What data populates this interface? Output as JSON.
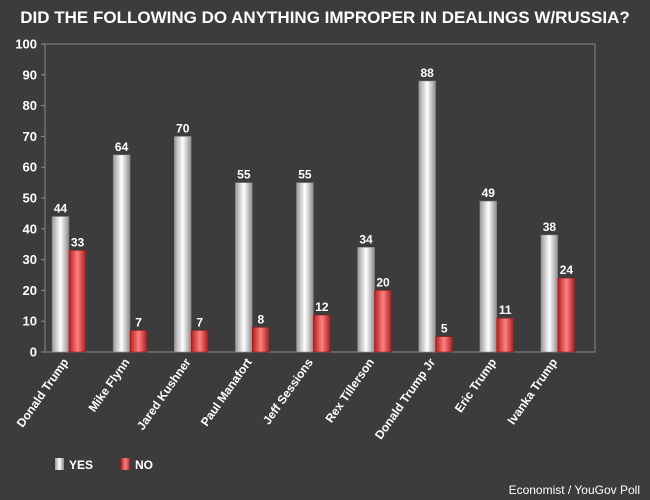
{
  "chart_data": {
    "type": "bar",
    "title": "DID THE FOLLOWING DO ANYTHING IMPROPER IN DEALINGS W/RUSSIA?",
    "categories": [
      "Donald Trump",
      "Mike Flynn",
      "Jared Kushner",
      "Paul Manafort",
      "Jeff Sessions",
      "Rex Tillerson",
      "Donald Trump Jr",
      "Eric Trump",
      "Ivanka Trump"
    ],
    "series": [
      {
        "name": "YES",
        "values": [
          44,
          64,
          70,
          55,
          55,
          34,
          88,
          49,
          38
        ]
      },
      {
        "name": "NO",
        "values": [
          33,
          7,
          7,
          8,
          12,
          20,
          5,
          11,
          24
        ]
      }
    ],
    "ylim": [
      0,
      100
    ],
    "yticks": [
      0,
      10,
      20,
      30,
      40,
      50,
      60,
      70,
      80,
      90,
      100
    ],
    "grid": false,
    "legend_position": "bottom-left",
    "colors": {
      "yes": "#e8e8e8",
      "no": "#e03c3c",
      "background": "#3c3c3c",
      "plot_border": "#8a8a8a"
    }
  },
  "source": "Economist / YouGov Poll"
}
